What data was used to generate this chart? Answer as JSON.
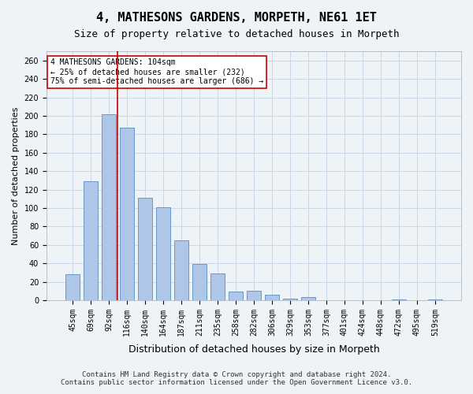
{
  "title": "4, MATHESONS GARDENS, MORPETH, NE61 1ET",
  "subtitle": "Size of property relative to detached houses in Morpeth",
  "xlabel": "Distribution of detached houses by size in Morpeth",
  "ylabel": "Number of detached properties",
  "bar_labels": [
    "45sqm",
    "69sqm",
    "92sqm",
    "116sqm",
    "140sqm",
    "164sqm",
    "187sqm",
    "211sqm",
    "235sqm",
    "258sqm",
    "282sqm",
    "306sqm",
    "329sqm",
    "353sqm",
    "377sqm",
    "401sqm",
    "424sqm",
    "448sqm",
    "472sqm",
    "495sqm",
    "519sqm"
  ],
  "bar_values": [
    28,
    129,
    202,
    187,
    111,
    101,
    65,
    39,
    29,
    9,
    10,
    6,
    2,
    3,
    0,
    0,
    0,
    0,
    1,
    0,
    1
  ],
  "bar_color": "#aec6e8",
  "bar_edge_color": "#5a8fc2",
  "grid_color": "#c8d8e8",
  "background_color": "#eef3f8",
  "vline_x": 2.5,
  "vline_color": "#cc0000",
  "annotation_text": "4 MATHESONS GARDENS: 104sqm\n← 25% of detached houses are smaller (232)\n75% of semi-detached houses are larger (686) →",
  "annotation_box_color": "#ffffff",
  "annotation_box_edge": "#cc0000",
  "ylim": [
    0,
    270
  ],
  "yticks": [
    0,
    20,
    40,
    60,
    80,
    100,
    120,
    140,
    160,
    180,
    200,
    220,
    240,
    260
  ],
  "footer_line1": "Contains HM Land Registry data © Crown copyright and database right 2024.",
  "footer_line2": "Contains public sector information licensed under the Open Government Licence v3.0.",
  "title_fontsize": 11,
  "subtitle_fontsize": 9,
  "xlabel_fontsize": 9,
  "ylabel_fontsize": 8,
  "tick_fontsize": 7,
  "annotation_fontsize": 7,
  "footer_fontsize": 6.5
}
